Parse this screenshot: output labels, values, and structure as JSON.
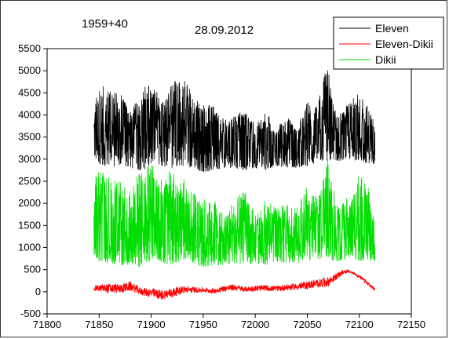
{
  "chart_data": {
    "type": "line",
    "annotations": [
      "1959+40",
      "28.09.2012"
    ],
    "title": "",
    "xlabel": "",
    "ylabel": "",
    "xlim": [
      71800,
      72150
    ],
    "ylim": [
      -500,
      5500
    ],
    "x_ticks": [
      71800,
      71850,
      71900,
      71950,
      72000,
      72050,
      72100,
      72150
    ],
    "y_ticks": [
      -500,
      0,
      500,
      1000,
      1500,
      2000,
      2500,
      3000,
      3500,
      4000,
      4500,
      5000,
      5500
    ],
    "grid": false,
    "legend_position": "top-right",
    "x_range_data": [
      71845,
      72115
    ],
    "series": [
      {
        "name": "Eleven",
        "color": "#000000",
        "band": {
          "x": [
            71845,
            71850,
            71860,
            71870,
            71880,
            71890,
            71900,
            71910,
            71920,
            71930,
            71940,
            71950,
            71960,
            71970,
            71980,
            71990,
            72000,
            72010,
            72020,
            72030,
            72040,
            72050,
            72060,
            72065,
            72070,
            72075,
            72080,
            72090,
            72100,
            72110,
            72115
          ],
          "low": [
            3000,
            2900,
            2800,
            2850,
            2800,
            2750,
            2800,
            2850,
            2800,
            2850,
            2800,
            2700,
            2750,
            2800,
            2800,
            2750,
            2800,
            2750,
            2850,
            2800,
            2800,
            2850,
            2900,
            2950,
            2900,
            3000,
            2950,
            3000,
            2950,
            2900,
            2900
          ],
          "high": [
            4500,
            4700,
            4600,
            4500,
            4100,
            4600,
            4700,
            4400,
            4800,
            4900,
            4500,
            4300,
            4200,
            3900,
            4000,
            4100,
            3800,
            4100,
            3700,
            4000,
            3700,
            4300,
            4200,
            4900,
            5100,
            4300,
            4000,
            4300,
            4500,
            4200,
            3800
          ]
        }
      },
      {
        "name": "Eleven-Dikii",
        "color": "#ff0000",
        "band": {
          "x": [
            71845,
            71860,
            71870,
            71880,
            71890,
            71900,
            71910,
            71920,
            71930,
            71940,
            71950,
            71960,
            71970,
            71980,
            71990,
            72000,
            72010,
            72020,
            72030,
            72040,
            72050,
            72060,
            72070,
            72080,
            72085,
            72090,
            72095,
            72100,
            72105,
            72110,
            72115
          ],
          "low": [
            20,
            -50,
            -40,
            0,
            -80,
            -150,
            -200,
            -150,
            -50,
            -30,
            -20,
            -50,
            0,
            20,
            -10,
            0,
            10,
            0,
            20,
            30,
            50,
            80,
            100,
            300,
            400,
            420,
            380,
            300,
            200,
            100,
            0
          ],
          "high": [
            150,
            200,
            180,
            250,
            100,
            100,
            50,
            100,
            150,
            120,
            100,
            80,
            150,
            180,
            120,
            150,
            160,
            140,
            180,
            200,
            250,
            300,
            350,
            450,
            510,
            500,
            450,
            380,
            300,
            200,
            100
          ]
        }
      },
      {
        "name": "Dikii",
        "color": "#00dd00",
        "band": {
          "x": [
            71845,
            71850,
            71860,
            71870,
            71880,
            71890,
            71900,
            71910,
            71920,
            71930,
            71940,
            71950,
            71960,
            71970,
            71980,
            71990,
            72000,
            72010,
            72020,
            72030,
            72040,
            72050,
            72060,
            72065,
            72070,
            72075,
            72080,
            72090,
            72100,
            72110,
            72115
          ],
          "low": [
            800,
            700,
            650,
            600,
            600,
            550,
            700,
            650,
            600,
            700,
            650,
            550,
            600,
            600,
            650,
            600,
            650,
            600,
            700,
            650,
            650,
            700,
            750,
            700,
            800,
            700,
            700,
            750,
            700,
            700,
            700
          ],
          "high": [
            2600,
            2800,
            2600,
            2500,
            2300,
            2800,
            2900,
            2700,
            2800,
            2600,
            2300,
            2100,
            2200,
            1700,
            2100,
            2300,
            1800,
            2100,
            1900,
            2000,
            1900,
            2400,
            2100,
            2500,
            3100,
            2400,
            1900,
            2200,
            2700,
            2300,
            1500
          ]
        }
      }
    ]
  }
}
